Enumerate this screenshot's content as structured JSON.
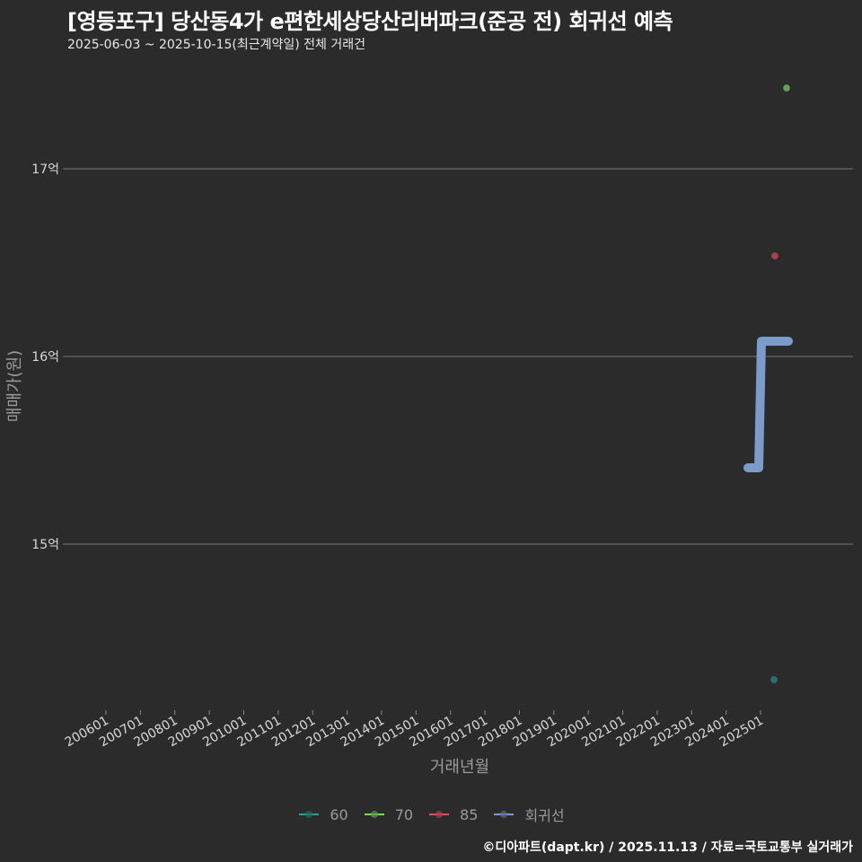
{
  "header": {
    "title": "[영등포구] 당산동4가 e편한세상당산리버파크(준공 전) 회귀선 예측",
    "subtitle": "2025-06-03 ~ 2025-10-15(최근계약일) 전체 거래건"
  },
  "axes": {
    "y_title": "매매가(원)",
    "x_title": "거래년월",
    "y_ticks": [
      "15억",
      "16억",
      "17억"
    ],
    "x_ticks": [
      "200601",
      "200701",
      "200801",
      "200901",
      "201001",
      "201101",
      "201201",
      "201301",
      "201401",
      "201501",
      "201601",
      "201701",
      "201801",
      "201901",
      "202001",
      "202101",
      "202201",
      "202301",
      "202401",
      "202501"
    ]
  },
  "legend": {
    "items": [
      {
        "label": "60",
        "color": "#2aa198"
      },
      {
        "label": "70",
        "color": "#7ed957"
      },
      {
        "label": "85",
        "color": "#e0505a"
      },
      {
        "label": "회귀선",
        "color": "#7b9cc9"
      }
    ]
  },
  "footer": {
    "credit": "©디아파트(dapt.kr) / 2025.11.13 / 자료=국토교통부 실거래가"
  },
  "chart_data": {
    "type": "scatter",
    "title": "[영등포구] 당산동4가 e편한세상당산리버파크(준공 전) 회귀선 예측",
    "subtitle": "2025-06-03 ~ 2025-10-15(최근계약일) 전체 거래건",
    "xlabel": "거래년월",
    "ylabel": "매매가(원)",
    "x_tick_labels": [
      "200601",
      "200701",
      "200801",
      "200901",
      "201001",
      "201101",
      "201201",
      "201301",
      "201401",
      "201501",
      "201601",
      "201701",
      "201801",
      "201901",
      "202001",
      "202101",
      "202201",
      "202301",
      "202401",
      "202501"
    ],
    "y_tick_labels": [
      "15억",
      "16억",
      "17억"
    ],
    "ylim_eok": [
      14.1,
      17.6
    ],
    "grid": "horizontal major only",
    "legend_position": "bottom",
    "series": [
      {
        "name": "60",
        "color": "#2aa198",
        "points": [
          {
            "x": "2025-06",
            "y_eok": 14.28
          }
        ]
      },
      {
        "name": "70",
        "color": "#7ed957",
        "points": [
          {
            "x": "2025-10",
            "y_eok": 17.43
          }
        ]
      },
      {
        "name": "85",
        "color": "#e0505a",
        "points": [
          {
            "x": "2025-06",
            "y_eok": 16.54
          }
        ]
      },
      {
        "name": "회귀선",
        "color": "#7b9cc9",
        "type": "step-line",
        "points": [
          {
            "x": "2024-12",
            "y_eok": 15.42
          },
          {
            "x": "2025-04",
            "y_eok": 15.42
          },
          {
            "x": "2025-05",
            "y_eok": 16.08
          },
          {
            "x": "2025-10",
            "y_eok": 16.08
          }
        ]
      }
    ]
  }
}
